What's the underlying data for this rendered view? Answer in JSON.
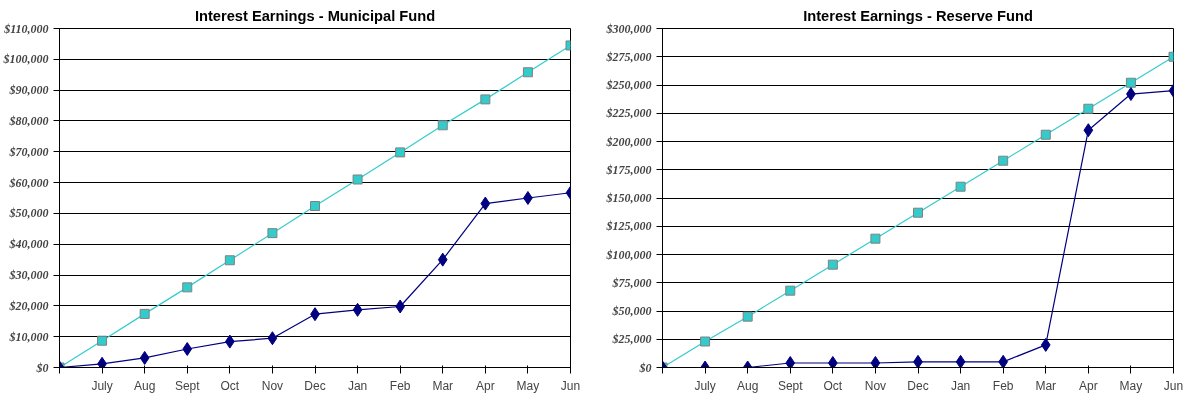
{
  "chart_data": [
    {
      "type": "line",
      "title": "Interest Earnings - Municipal Fund",
      "categories": [
        null,
        "July",
        "Aug",
        "Sept",
        "Oct",
        "Nov",
        "Dec",
        "Jan",
        "Feb",
        "Mar",
        "Apr",
        "May",
        "Jun"
      ],
      "ylim": [
        0,
        110000
      ],
      "yticks": [
        {
          "value": 0,
          "label": "$0"
        },
        {
          "value": 10000,
          "label": "$10,000"
        },
        {
          "value": 20000,
          "label": "$20,000"
        },
        {
          "value": 30000,
          "label": "$30,000"
        },
        {
          "value": 40000,
          "label": "$40,000"
        },
        {
          "value": 50000,
          "label": "$50,000"
        },
        {
          "value": 60000,
          "label": "$60,000"
        },
        {
          "value": 70000,
          "label": "$70,000"
        },
        {
          "value": 80000,
          "label": "$80,000"
        },
        {
          "value": 90000,
          "label": "$90,000"
        },
        {
          "value": 100000,
          "label": "$100,000"
        },
        {
          "value": 110000,
          "label": "$110,000"
        }
      ],
      "grid": "y",
      "series": [
        {
          "color": "#33cccc",
          "marker": "square",
          "values": [
            0,
            8700,
            17400,
            26000,
            34800,
            43600,
            52400,
            61000,
            69800,
            78600,
            87000,
            95800,
            104500
          ]
        },
        {
          "color": "#000080",
          "marker": "diamond",
          "values": [
            0,
            1200,
            3100,
            6000,
            8400,
            9500,
            17300,
            18700,
            19800,
            35000,
            53200,
            55000,
            56700
          ]
        }
      ]
    },
    {
      "type": "line",
      "title": "Interest Earnings - Reserve Fund",
      "categories": [
        null,
        "July",
        "Aug",
        "Sept",
        "Oct",
        "Nov",
        "Dec",
        "Jan",
        "Feb",
        "Mar",
        "Apr",
        "May",
        "Jun"
      ],
      "ylim": [
        0,
        300000
      ],
      "yticks": [
        {
          "value": 0,
          "label": "$0"
        },
        {
          "value": 25000,
          "label": "$25,000"
        },
        {
          "value": 50000,
          "label": "$50,000"
        },
        {
          "value": 75000,
          "label": "$75,000"
        },
        {
          "value": 100000,
          "label": "$100,000"
        },
        {
          "value": 125000,
          "label": "$125,000"
        },
        {
          "value": 150000,
          "label": "$150,000"
        },
        {
          "value": 175000,
          "label": "$175,000"
        },
        {
          "value": 200000,
          "label": "$200,000"
        },
        {
          "value": 225000,
          "label": "$225,000"
        },
        {
          "value": 250000,
          "label": "$250,000"
        },
        {
          "value": 275000,
          "label": "$275,000"
        },
        {
          "value": 300000,
          "label": "$300,000"
        }
      ],
      "grid": "y",
      "series": [
        {
          "color": "#33cccc",
          "marker": "square",
          "values": [
            0,
            23000,
            45000,
            68000,
            91000,
            114000,
            137000,
            160000,
            183000,
            206000,
            229000,
            252000,
            275000
          ]
        },
        {
          "color": "#000080",
          "marker": "diamond",
          "values": [
            0,
            0,
            0,
            4000,
            4000,
            4000,
            5000,
            5000,
            5000,
            20000,
            210000,
            242000,
            245000
          ]
        }
      ]
    }
  ]
}
